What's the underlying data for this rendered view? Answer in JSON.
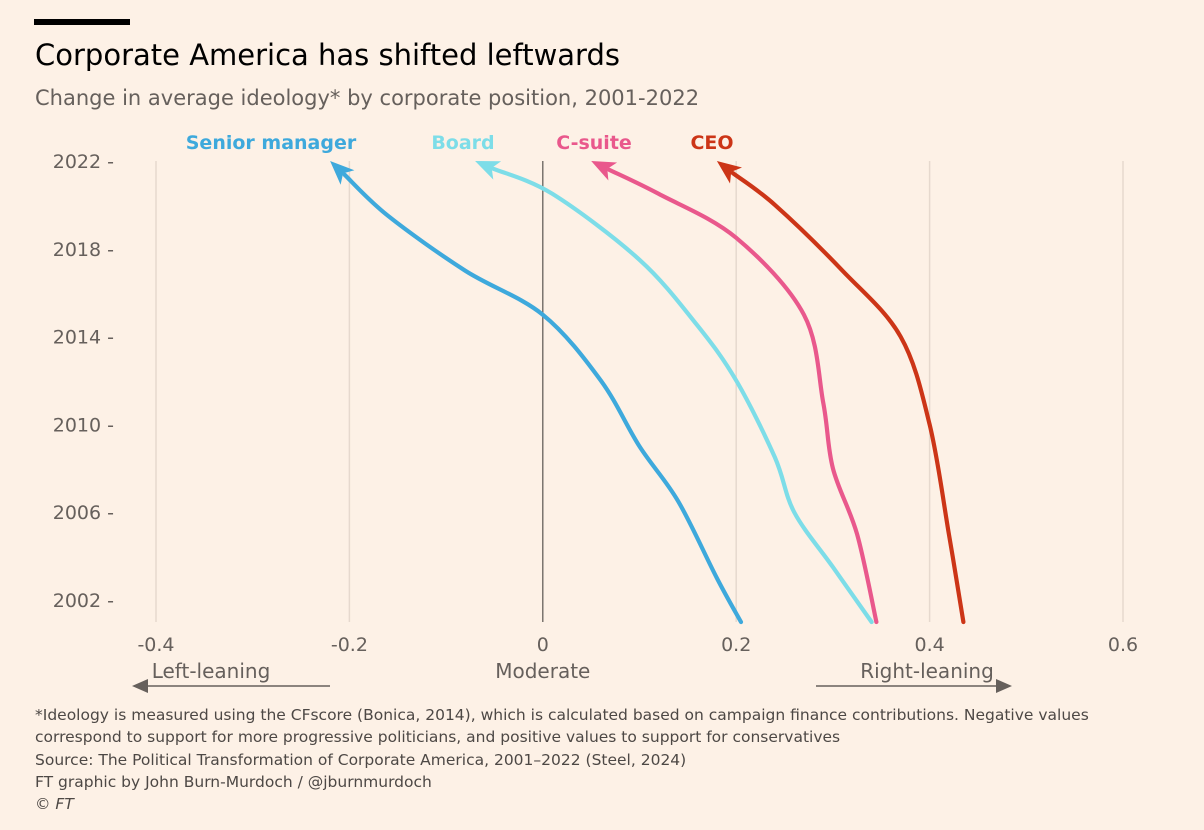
{
  "title": "Corporate America has shifted leftwards",
  "subtitle": "Change in average ideology* by corporate position, 2001-2022",
  "chart_data": {
    "type": "line",
    "x_range": [
      -0.4,
      0.6
    ],
    "y_range": [
      2001,
      2022
    ],
    "x_ticks": [
      -0.4,
      -0.2,
      0,
      0.2,
      0.4,
      0.6
    ],
    "x_tick_labels": [
      "-0.4",
      "-0.2",
      "0",
      "0.2",
      "0.4",
      "0.6"
    ],
    "y_ticks": [
      2002,
      2006,
      2010,
      2014,
      2018,
      2022
    ],
    "y_tick_labels": [
      "2002 -",
      "2006 -",
      "2010 -",
      "2014 -",
      "2018 -",
      "2022 -"
    ],
    "x_axis_annotations": {
      "left": "Left-leaning",
      "center": "Moderate",
      "right": "Right-leaning"
    },
    "grid": "vertical",
    "series": [
      {
        "name": "Senior manager",
        "color": "#3ea9dc",
        "points": [
          [
            0.205,
            2001
          ],
          [
            0.18,
            2003
          ],
          [
            0.14,
            2006.5
          ],
          [
            0.1,
            2009
          ],
          [
            0.06,
            2012
          ],
          [
            0.0,
            2015
          ],
          [
            -0.08,
            2017
          ],
          [
            -0.16,
            2019.5
          ],
          [
            -0.22,
            2022
          ]
        ]
      },
      {
        "name": "Board",
        "color": "#7ddde8",
        "points": [
          [
            0.34,
            2001
          ],
          [
            0.3,
            2003.5
          ],
          [
            0.26,
            2006
          ],
          [
            0.24,
            2008.5
          ],
          [
            0.2,
            2012
          ],
          [
            0.16,
            2014.5
          ],
          [
            0.1,
            2017.5
          ],
          [
            0.01,
            2020.5
          ],
          [
            -0.07,
            2022
          ]
        ]
      },
      {
        "name": "C-suite",
        "color": "#e9588c",
        "points": [
          [
            0.345,
            2001
          ],
          [
            0.325,
            2005
          ],
          [
            0.3,
            2008
          ],
          [
            0.29,
            2011
          ],
          [
            0.27,
            2015
          ],
          [
            0.2,
            2018.5
          ],
          [
            0.12,
            2020.5
          ],
          [
            0.05,
            2022
          ]
        ]
      },
      {
        "name": "CEO",
        "color": "#cc3517",
        "points": [
          [
            0.435,
            2001
          ],
          [
            0.42,
            2005
          ],
          [
            0.4,
            2010
          ],
          [
            0.37,
            2014
          ],
          [
            0.31,
            2017
          ],
          [
            0.24,
            2020
          ],
          [
            0.18,
            2022
          ]
        ]
      }
    ]
  },
  "notes": {
    "footnote_line1": "*Ideology is measured using the CFscore (Bonica, 2014), which is calculated based on campaign finance contributions. Negative values",
    "footnote_line2": "correspond to support for more progressive politicians, and positive values to support for conservatives",
    "source": "Source: The Political Transformation of Corporate America, 2001–2022 (Steel, 2024)",
    "credit": "FT graphic by John Burn-Murdoch / @jburnmurdoch",
    "copyright": "© FT"
  },
  "colors": {
    "background": "#fdf1e6",
    "grid": "#e6d9ce",
    "zero_line": "#66605c",
    "axis_text": "#66605c"
  }
}
